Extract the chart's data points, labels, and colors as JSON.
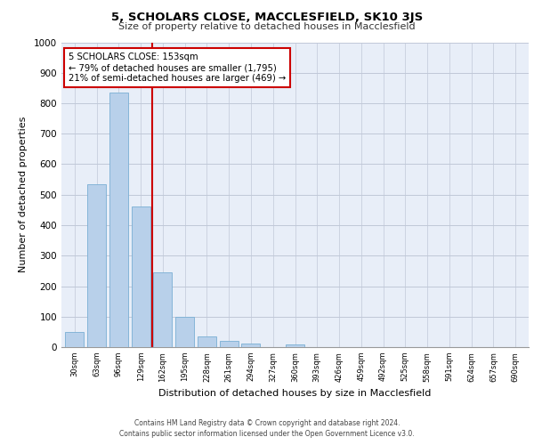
{
  "title": "5, SCHOLARS CLOSE, MACCLESFIELD, SK10 3JS",
  "subtitle": "Size of property relative to detached houses in Macclesfield",
  "xlabel": "Distribution of detached houses by size in Macclesfield",
  "ylabel": "Number of detached properties",
  "footer_line1": "Contains HM Land Registry data © Crown copyright and database right 2024.",
  "footer_line2": "Contains public sector information licensed under the Open Government Licence v3.0.",
  "bar_labels": [
    "30sqm",
    "63sqm",
    "96sqm",
    "129sqm",
    "162sqm",
    "195sqm",
    "228sqm",
    "261sqm",
    "294sqm",
    "327sqm",
    "360sqm",
    "393sqm",
    "426sqm",
    "459sqm",
    "492sqm",
    "525sqm",
    "558sqm",
    "591sqm",
    "624sqm",
    "657sqm",
    "690sqm"
  ],
  "bar_values": [
    50,
    535,
    835,
    460,
    245,
    98,
    35,
    20,
    12,
    0,
    10,
    0,
    0,
    0,
    0,
    0,
    0,
    0,
    0,
    0,
    0
  ],
  "bar_color": "#b8d0ea",
  "bar_edgecolor": "#7aafd4",
  "ylim": [
    0,
    1000
  ],
  "yticks": [
    0,
    100,
    200,
    300,
    400,
    500,
    600,
    700,
    800,
    900,
    1000
  ],
  "red_line_x": 3.5,
  "annotation_text": "5 SCHOLARS CLOSE: 153sqm\n← 79% of detached houses are smaller (1,795)\n21% of semi-detached houses are larger (469) →",
  "annotation_box_color": "#ffffff",
  "annotation_box_edgecolor": "#cc0000",
  "background_color": "#e8eef8",
  "fig_background": "#ffffff"
}
